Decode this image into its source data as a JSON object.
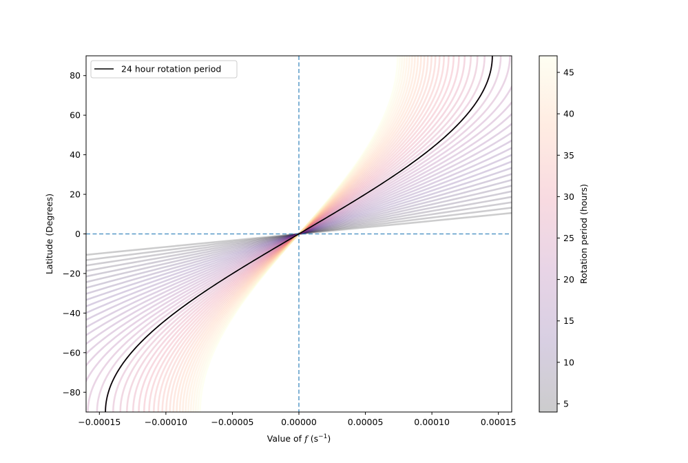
{
  "chart_data": {
    "type": "line",
    "title": "",
    "xlabel": "Value of",
    "xlabel_var": "f",
    "xlabel_unit": "(s",
    "xlabel_unit_exp": "−1",
    "xlabel_unit_close": ")",
    "ylabel": "Latitude (Degrees)",
    "xlim": [
      -0.00016,
      0.00016
    ],
    "ylim": [
      -90,
      90
    ],
    "xticks": [
      -0.00015,
      -0.0001,
      -5e-05,
      0,
      5e-05,
      0.0001,
      0.00015
    ],
    "xtick_labels": [
      "−0.00015",
      "−0.00010",
      "−0.00005",
      "0.00000",
      "0.00005",
      "0.00010",
      "0.00015"
    ],
    "yticks": [
      -80,
      -60,
      -40,
      -20,
      0,
      20,
      40,
      60,
      80
    ],
    "ytick_labels": [
      "−80",
      "−60",
      "−40",
      "−20",
      "0",
      "20",
      "40",
      "60",
      "80"
    ],
    "grid": false,
    "function": "latitude = arcsin(f * P / (4 * pi)), P = rotation period in seconds",
    "family": {
      "name": "Rotation period (hours)",
      "period_min_hours": 4,
      "period_max_hours": 47,
      "period_step_hours": 1,
      "line_alpha": 0.2
    },
    "highlight_series": {
      "name": "24 hour rotation period",
      "period_hours": 24,
      "color": "#000000"
    },
    "reference_lines": {
      "x": 0,
      "y": 0,
      "color": "#1f77b4",
      "style": "dashed"
    },
    "legend": {
      "placement": "top-left",
      "entries": [
        "24 hour rotation period"
      ]
    },
    "colorbar": {
      "label": "Rotation period (hours)",
      "range": [
        4,
        47
      ],
      "ticks": [
        5,
        10,
        15,
        20,
        25,
        30,
        35,
        40,
        45
      ],
      "tick_labels": [
        "5",
        "10",
        "15",
        "20",
        "25",
        "30",
        "35",
        "40",
        "45"
      ],
      "colormap": "magma",
      "colormap_stops": [
        "#000004",
        "#3b0f70",
        "#8c2981",
        "#de4968",
        "#fe9f6d",
        "#fcfdbf"
      ]
    }
  }
}
